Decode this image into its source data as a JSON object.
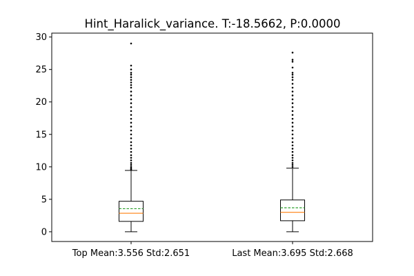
{
  "chart_data": {
    "type": "box",
    "title": "Hint_Haralick_variance. T:-18.5662, P:0.0000",
    "xlabel": "",
    "ylabel": "",
    "ylim": [
      -1.5,
      30.6
    ],
    "y_ticks": [
      0,
      5,
      10,
      15,
      20,
      25,
      30
    ],
    "grid": false,
    "legend": "none",
    "categories": [
      "Top Mean:3.556 Std:2.651",
      "Last Mean:3.695 Std:2.668"
    ],
    "boxes": [
      {
        "whisker_low": 0.0,
        "q1": 1.6,
        "median": 2.85,
        "mean": 3.556,
        "q3": 4.7,
        "whisker_high": 9.45,
        "outliers": [
          9.6,
          9.8,
          10.0,
          10.3,
          10.6,
          11.0,
          11.4,
          11.8,
          12.3,
          12.8,
          13.3,
          13.8,
          14.4,
          15.0,
          15.6,
          16.2,
          16.8,
          17.4,
          18.0,
          18.6,
          19.2,
          19.8,
          20.4,
          21.0,
          21.6,
          22.2,
          22.6,
          23.0,
          23.4,
          23.8,
          24.2,
          24.5,
          25.0,
          25.6,
          29.0
        ]
      },
      {
        "whisker_low": 0.0,
        "q1": 1.7,
        "median": 3.0,
        "mean": 3.695,
        "q3": 4.9,
        "whisker_high": 9.8,
        "outliers": [
          10.0,
          10.3,
          10.6,
          11.0,
          11.4,
          11.8,
          12.3,
          12.8,
          13.3,
          13.8,
          14.4,
          15.0,
          15.6,
          16.2,
          16.8,
          17.4,
          18.0,
          18.6,
          19.2,
          19.8,
          20.4,
          21.0,
          21.6,
          22.2,
          22.8,
          23.4,
          23.8,
          24.2,
          24.5,
          25.3,
          26.2,
          26.5,
          27.6
        ]
      }
    ],
    "colors": {
      "box": "#000000",
      "median": "#ff7f0e",
      "mean": "#2ca02c",
      "outlier": "#000000"
    }
  }
}
